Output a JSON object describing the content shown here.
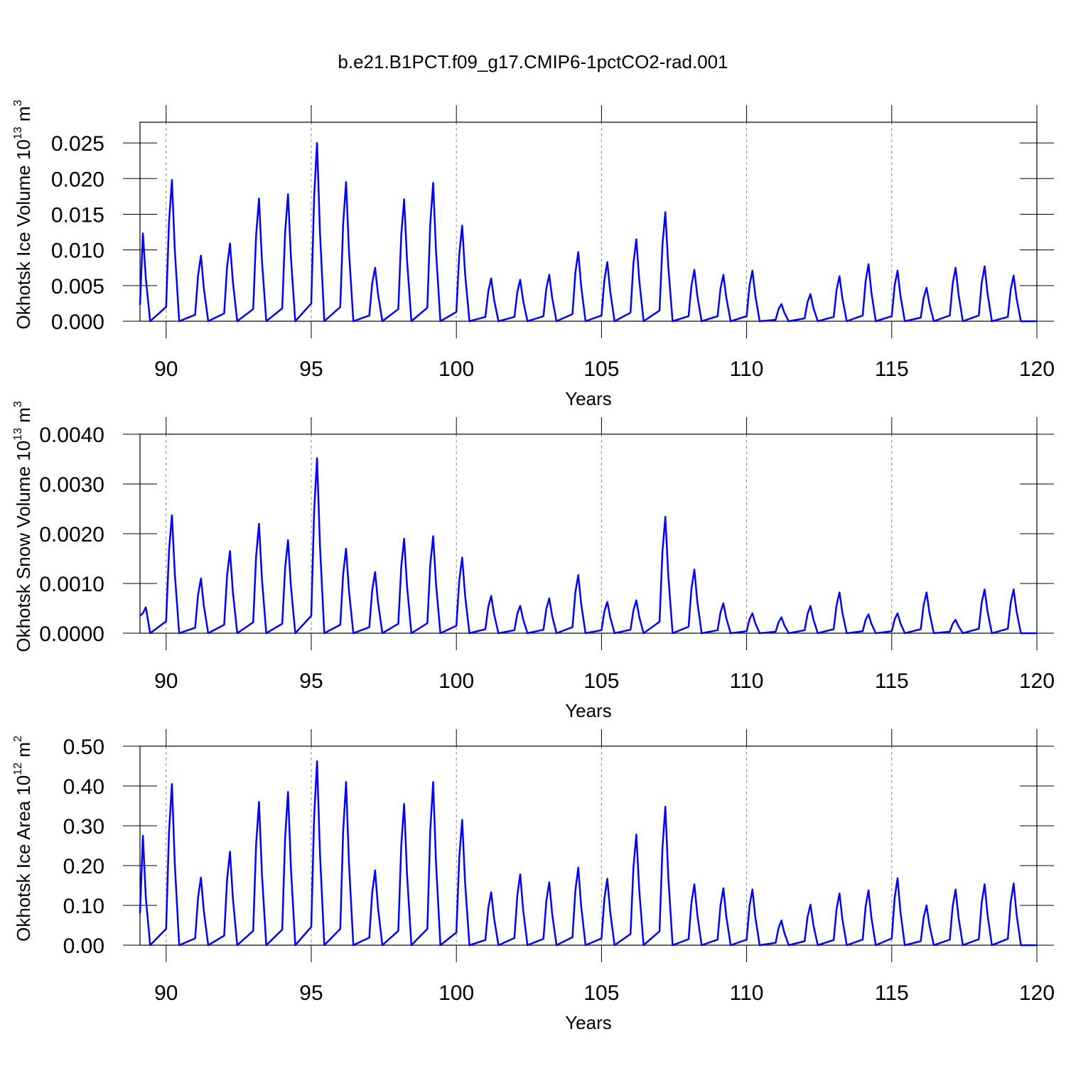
{
  "chart_data": [
    {
      "type": "line",
      "title": "b.e21.B1PCT.f09_g17.CMIP6-1pctCO2-rad.001",
      "xlabel": "Years",
      "ylabel": {
        "text": "Okhotsk Ice Volume 10",
        "exponent": "13",
        "unit": " m",
        "unit_power": "3"
      },
      "color": "#0000ff",
      "grid": true,
      "xlim": [
        89.1,
        120
      ],
      "xticks": [
        90,
        95,
        100,
        105,
        110,
        115,
        120
      ],
      "ylim": [
        0,
        0.0279
      ],
      "yticks": [
        {
          "value": 0,
          "label": "0.000"
        },
        {
          "value": 0.005,
          "label": "0.005"
        },
        {
          "value": 0.01,
          "label": "0.010"
        },
        {
          "value": 0.015,
          "label": "0.015"
        },
        {
          "value": 0.02,
          "label": "0.020"
        },
        {
          "value": 0.025,
          "label": "0.025"
        }
      ],
      "x": [
        89.1,
        89.2,
        89.3,
        89.45,
        90,
        90.1,
        90.2,
        90.3,
        90.45,
        91,
        91.1,
        91.2,
        91.3,
        91.45,
        92,
        92.1,
        92.2,
        92.3,
        92.45,
        93,
        93.1,
        93.2,
        93.3,
        93.45,
        94,
        94.1,
        94.2,
        94.3,
        94.45,
        95,
        95.1,
        95.2,
        95.3,
        95.45,
        96,
        96.1,
        96.2,
        96.3,
        96.45,
        97,
        97.1,
        97.2,
        97.3,
        97.45,
        98,
        98.1,
        98.2,
        98.3,
        98.45,
        99,
        99.1,
        99.2,
        99.3,
        99.45,
        100,
        100.1,
        100.2,
        100.3,
        100.45,
        101,
        101.1,
        101.2,
        101.3,
        101.45,
        102,
        102.1,
        102.2,
        102.3,
        102.45,
        103,
        103.1,
        103.2,
        103.3,
        103.45,
        104,
        104.1,
        104.2,
        104.3,
        104.45,
        105,
        105.1,
        105.2,
        105.3,
        105.45,
        106,
        106.1,
        106.2,
        106.3,
        106.45,
        107,
        107.1,
        107.2,
        107.3,
        107.45,
        108,
        108.1,
        108.2,
        108.3,
        108.45,
        109,
        109.1,
        109.2,
        109.3,
        109.45,
        110,
        110.1,
        110.2,
        110.3,
        110.45,
        111,
        111.1,
        111.2,
        111.3,
        111.45,
        112,
        112.1,
        112.2,
        112.3,
        112.45,
        113,
        113.1,
        113.2,
        113.3,
        113.45,
        114,
        114.1,
        114.2,
        114.3,
        114.45,
        115,
        115.1,
        115.2,
        115.3,
        115.45,
        116,
        116.1,
        116.2,
        116.3,
        116.45,
        117,
        117.1,
        117.2,
        117.3,
        117.45,
        118,
        118.1,
        118.2,
        118.3,
        118.45,
        119,
        119.1,
        119.2,
        119.3,
        119.45,
        120
      ],
      "values": [
        0.0023,
        0.0123,
        0.006,
        0,
        0.002,
        0.0139,
        0.0198,
        0.0099,
        0,
        0.0009,
        0.0064,
        0.0092,
        0.0046,
        0,
        0.0011,
        0.0076,
        0.0109,
        0.0055,
        0,
        0.0017,
        0.012,
        0.0172,
        0.0086,
        0,
        0.0018,
        0.0125,
        0.0178,
        0.0089,
        0,
        0.0025,
        0.0175,
        0.025,
        0.0125,
        0,
        0.002,
        0.0137,
        0.0195,
        0.0098,
        0,
        0.0008,
        0.0053,
        0.0075,
        0.0038,
        0,
        0.0017,
        0.012,
        0.0171,
        0.0086,
        0,
        0.0019,
        0.0136,
        0.0194,
        0.0097,
        0,
        0.0013,
        0.0094,
        0.0134,
        0.0067,
        0,
        0.0006,
        0.0042,
        0.006,
        0.003,
        0,
        0.0006,
        0.0041,
        0.0058,
        0.0029,
        0,
        0.0007,
        0.0046,
        0.0065,
        0.0033,
        0,
        0.001,
        0.0068,
        0.0097,
        0.0049,
        0,
        0.0008,
        0.0058,
        0.0083,
        0.0042,
        0,
        0.0012,
        0.0081,
        0.0115,
        0.0058,
        0,
        0.0015,
        0.0107,
        0.0153,
        0.0077,
        0,
        0.0007,
        0.005,
        0.0072,
        0.0036,
        0,
        0.0007,
        0.0046,
        0.0065,
        0.0033,
        0,
        0.0007,
        0.005,
        0.0071,
        0.0036,
        0,
        0.0002,
        0.0017,
        0.0024,
        0.0012,
        0,
        0.0004,
        0.0027,
        0.0038,
        0.0019,
        0,
        0.0006,
        0.0044,
        0.0063,
        0.0032,
        0,
        0.0008,
        0.0056,
        0.008,
        0.004,
        0,
        0.0007,
        0.005,
        0.0071,
        0.0036,
        0,
        0.0005,
        0.0033,
        0.0047,
        0.0024,
        0,
        0.0008,
        0.0053,
        0.0075,
        0.0038,
        0,
        0.0008,
        0.0054,
        0.0077,
        0.0039,
        0,
        0.0006,
        0.0045,
        0.0064,
        0.0032,
        0,
        0
      ]
    },
    {
      "type": "line",
      "xlabel": "Years",
      "ylabel": {
        "text": "Okhotsk Snow Volume 10",
        "exponent": "13",
        "unit": " m",
        "unit_power": "3"
      },
      "color": "#0000ff",
      "grid": true,
      "xlim": [
        89.1,
        120
      ],
      "xticks": [
        90,
        95,
        100,
        105,
        110,
        115,
        120
      ],
      "ylim": [
        0,
        0.004
      ],
      "yticks": [
        {
          "value": 0,
          "label": "0.0000"
        },
        {
          "value": 0.001,
          "label": "0.0010"
        },
        {
          "value": 0.002,
          "label": "0.0020"
        },
        {
          "value": 0.003,
          "label": "0.0030"
        },
        {
          "value": 0.004,
          "label": "0.0040"
        }
      ],
      "x": [
        89.1,
        89.2,
        89.3,
        89.45,
        90,
        90.1,
        90.2,
        90.3,
        90.45,
        91,
        91.1,
        91.2,
        91.3,
        91.45,
        92,
        92.1,
        92.2,
        92.3,
        92.45,
        93,
        93.1,
        93.2,
        93.3,
        93.45,
        94,
        94.1,
        94.2,
        94.3,
        94.45,
        95,
        95.1,
        95.2,
        95.3,
        95.45,
        96,
        96.1,
        96.2,
        96.3,
        96.45,
        97,
        97.1,
        97.2,
        97.3,
        97.45,
        98,
        98.1,
        98.2,
        98.3,
        98.45,
        99,
        99.1,
        99.2,
        99.3,
        99.45,
        100,
        100.1,
        100.2,
        100.3,
        100.45,
        101,
        101.1,
        101.2,
        101.3,
        101.45,
        102,
        102.1,
        102.2,
        102.3,
        102.45,
        103,
        103.1,
        103.2,
        103.3,
        103.45,
        104,
        104.1,
        104.2,
        104.3,
        104.45,
        105,
        105.1,
        105.2,
        105.3,
        105.45,
        106,
        106.1,
        106.2,
        106.3,
        106.45,
        107,
        107.1,
        107.2,
        107.3,
        107.45,
        108,
        108.1,
        108.2,
        108.3,
        108.45,
        109,
        109.1,
        109.2,
        109.3,
        109.45,
        110,
        110.1,
        110.2,
        110.3,
        110.45,
        111,
        111.1,
        111.2,
        111.3,
        111.45,
        112,
        112.1,
        112.2,
        112.3,
        112.45,
        113,
        113.1,
        113.2,
        113.3,
        113.45,
        114,
        114.1,
        114.2,
        114.3,
        114.45,
        115,
        115.1,
        115.2,
        115.3,
        115.45,
        116,
        116.1,
        116.2,
        116.3,
        116.45,
        117,
        117.1,
        117.2,
        117.3,
        117.45,
        118,
        118.1,
        118.2,
        118.3,
        118.45,
        119,
        119.1,
        119.2,
        119.3,
        119.45,
        120
      ],
      "values": [
        0.00035,
        0.0004,
        0.00052,
        0,
        0.00024,
        0.00166,
        0.00237,
        0.00119,
        0,
        0.00011,
        0.00077,
        0.0011,
        0.00055,
        0,
        0.00017,
        0.00116,
        0.00165,
        0.00083,
        0,
        0.00022,
        0.00154,
        0.0022,
        0.0011,
        0,
        0.00019,
        0.00131,
        0.00187,
        0.00094,
        0,
        0.00035,
        0.00246,
        0.00352,
        0.00176,
        0,
        0.00017,
        0.00119,
        0.0017,
        0.00085,
        0,
        0.00012,
        0.00086,
        0.00123,
        0.00062,
        0,
        0.00019,
        0.00133,
        0.0019,
        0.00095,
        0,
        0.0002,
        0.00137,
        0.00195,
        0.00098,
        0,
        0.00015,
        0.00106,
        0.00152,
        0.00076,
        0,
        8e-05,
        0.00053,
        0.00075,
        0.00038,
        0,
        6e-05,
        0.00039,
        0.00055,
        0.00028,
        0,
        7e-05,
        0.00049,
        0.0007,
        0.00035,
        0,
        0.00012,
        0.00082,
        0.00117,
        0.00059,
        0,
        6e-05,
        0.00044,
        0.00063,
        0.00032,
        0,
        7e-05,
        0.00046,
        0.00066,
        0.00033,
        0,
        0.00023,
        0.00164,
        0.00234,
        0.00117,
        0,
        0.00013,
        0.0009,
        0.00128,
        0.00064,
        0,
        6e-05,
        0.00042,
        0.0006,
        0.0003,
        0,
        4e-05,
        0.00028,
        0.0004,
        0.0002,
        0,
        3e-05,
        0.00022,
        0.00032,
        0.00016,
        0,
        6e-05,
        0.00039,
        0.00055,
        0.00028,
        0,
        8e-05,
        0.00057,
        0.00082,
        0.00041,
        0,
        4e-05,
        0.00027,
        0.00038,
        0.00019,
        0,
        4e-05,
        0.00028,
        0.0004,
        0.0002,
        0,
        8e-05,
        0.00057,
        0.00082,
        0.00041,
        0,
        3e-05,
        0.00019,
        0.00027,
        0.00014,
        0,
        9e-05,
        0.00062,
        0.00088,
        0.00044,
        0,
        9e-05,
        0.00062,
        0.00088,
        0.00044,
        0,
        0
      ]
    },
    {
      "type": "line",
      "xlabel": "Years",
      "ylabel": {
        "text": "Okhotsk Ice Area 10",
        "exponent": "12",
        "unit": " m",
        "unit_power": "2"
      },
      "color": "#0000ff",
      "grid": true,
      "xlim": [
        89.1,
        120
      ],
      "xticks": [
        90,
        95,
        100,
        105,
        110,
        115,
        120
      ],
      "ylim": [
        0,
        0.5
      ],
      "yticks": [
        {
          "value": 0,
          "label": "0.00"
        },
        {
          "value": 0.1,
          "label": "0.10"
        },
        {
          "value": 0.2,
          "label": "0.20"
        },
        {
          "value": 0.3,
          "label": "0.30"
        },
        {
          "value": 0.4,
          "label": "0.40"
        },
        {
          "value": 0.5,
          "label": "0.50"
        }
      ],
      "x": [
        89.1,
        89.2,
        89.3,
        89.45,
        90,
        90.1,
        90.2,
        90.3,
        90.45,
        91,
        91.1,
        91.2,
        91.3,
        91.45,
        92,
        92.1,
        92.2,
        92.3,
        92.45,
        93,
        93.1,
        93.2,
        93.3,
        93.45,
        94,
        94.1,
        94.2,
        94.3,
        94.45,
        95,
        95.1,
        95.2,
        95.3,
        95.45,
        96,
        96.1,
        96.2,
        96.3,
        96.45,
        97,
        97.1,
        97.2,
        97.3,
        97.45,
        98,
        98.1,
        98.2,
        98.3,
        98.45,
        99,
        99.1,
        99.2,
        99.3,
        99.45,
        100,
        100.1,
        100.2,
        100.3,
        100.45,
        101,
        101.1,
        101.2,
        101.3,
        101.45,
        102,
        102.1,
        102.2,
        102.3,
        102.45,
        103,
        103.1,
        103.2,
        103.3,
        103.45,
        104,
        104.1,
        104.2,
        104.3,
        104.45,
        105,
        105.1,
        105.2,
        105.3,
        105.45,
        106,
        106.1,
        106.2,
        106.3,
        106.45,
        107,
        107.1,
        107.2,
        107.3,
        107.45,
        108,
        108.1,
        108.2,
        108.3,
        108.45,
        109,
        109.1,
        109.2,
        109.3,
        109.45,
        110,
        110.1,
        110.2,
        110.3,
        110.45,
        111,
        111.1,
        111.2,
        111.3,
        111.45,
        112,
        112.1,
        112.2,
        112.3,
        112.45,
        113,
        113.1,
        113.2,
        113.3,
        113.45,
        114,
        114.1,
        114.2,
        114.3,
        114.45,
        115,
        115.1,
        115.2,
        115.3,
        115.45,
        116,
        116.1,
        116.2,
        116.3,
        116.45,
        117,
        117.1,
        117.2,
        117.3,
        117.45,
        118,
        118.1,
        118.2,
        118.3,
        118.45,
        119,
        119.1,
        119.2,
        119.3,
        119.45,
        120
      ],
      "values": [
        0.08,
        0.275,
        0.12,
        0,
        0.041,
        0.284,
        0.405,
        0.203,
        0,
        0.017,
        0.119,
        0.17,
        0.085,
        0,
        0.024,
        0.165,
        0.235,
        0.118,
        0,
        0.036,
        0.252,
        0.36,
        0.18,
        0,
        0.039,
        0.27,
        0.385,
        0.193,
        0,
        0.046,
        0.323,
        0.462,
        0.231,
        0,
        0.041,
        0.287,
        0.41,
        0.205,
        0,
        0.019,
        0.132,
        0.188,
        0.094,
        0,
        0.036,
        0.249,
        0.355,
        0.178,
        0,
        0.041,
        0.287,
        0.41,
        0.205,
        0,
        0.032,
        0.221,
        0.315,
        0.158,
        0,
        0.013,
        0.093,
        0.133,
        0.067,
        0,
        0.018,
        0.125,
        0.178,
        0.089,
        0,
        0.016,
        0.111,
        0.158,
        0.079,
        0,
        0.02,
        0.137,
        0.195,
        0.098,
        0,
        0.017,
        0.117,
        0.167,
        0.084,
        0,
        0.028,
        0.195,
        0.278,
        0.139,
        0,
        0.035,
        0.244,
        0.348,
        0.174,
        0,
        0.015,
        0.107,
        0.153,
        0.077,
        0,
        0.014,
        0.1,
        0.143,
        0.072,
        0,
        0.014,
        0.098,
        0.14,
        0.07,
        0,
        0.006,
        0.043,
        0.062,
        0.031,
        0,
        0.01,
        0.071,
        0.102,
        0.051,
        0,
        0.013,
        0.091,
        0.13,
        0.065,
        0,
        0.014,
        0.097,
        0.138,
        0.069,
        0,
        0.017,
        0.118,
        0.168,
        0.084,
        0,
        0.01,
        0.07,
        0.1,
        0.05,
        0,
        0.014,
        0.098,
        0.14,
        0.07,
        0,
        0.015,
        0.107,
        0.153,
        0.077,
        0,
        0.016,
        0.109,
        0.155,
        0.078,
        0,
        0
      ]
    }
  ]
}
